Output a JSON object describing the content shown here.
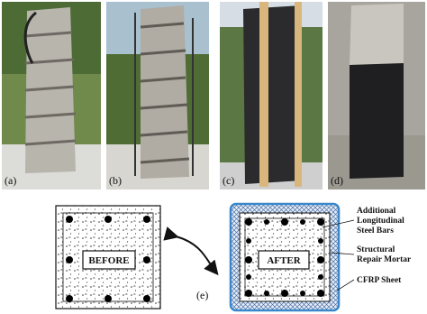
{
  "photos": [
    {
      "label": "(a)"
    },
    {
      "label": "(b)"
    },
    {
      "label": "(c)"
    },
    {
      "label": "(d)"
    }
  ],
  "diagram": {
    "label": "(e)",
    "before": "BEFORE",
    "after": "AFTER",
    "callouts": [
      {
        "lines": [
          "Additional",
          "Longitudinal",
          "Steel Bars"
        ]
      },
      {
        "lines": [
          "Structural",
          "Repair Mortar"
        ]
      },
      {
        "lines": [
          "CFRP Sheet"
        ]
      }
    ]
  }
}
